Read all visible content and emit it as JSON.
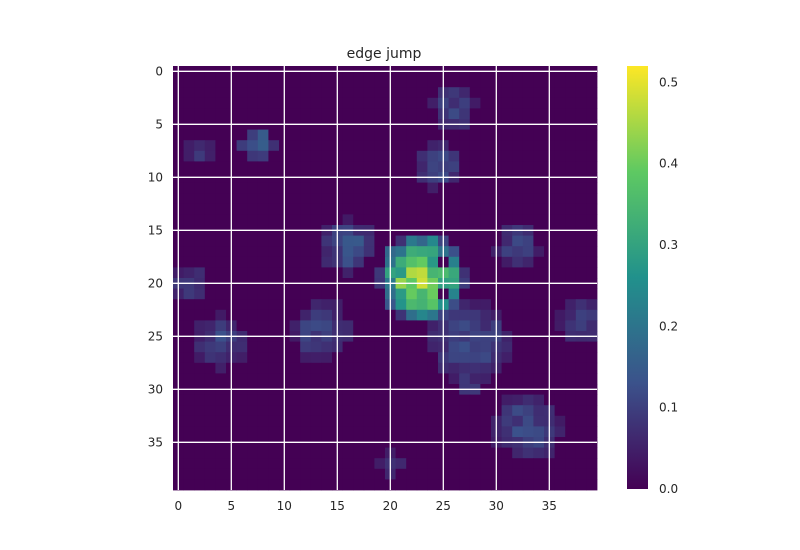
{
  "chart_data": {
    "type": "heatmap",
    "title": "edge jump",
    "xlabel": "",
    "ylabel": "",
    "grid": true,
    "colormap": "viridis",
    "rows": 40,
    "cols": 40,
    "x_ticks": [
      0,
      5,
      10,
      15,
      20,
      25,
      30,
      35
    ],
    "y_ticks": [
      0,
      5,
      10,
      15,
      20,
      25,
      30,
      35
    ],
    "colorbar": {
      "min": 0.0,
      "max": 0.52,
      "ticks": [
        "0.0",
        "0.1",
        "0.2",
        "0.3",
        "0.4",
        "0.5"
      ]
    },
    "blobs": [
      {
        "cx": 23,
        "cy": 19.5,
        "r": 4.2,
        "peak": 0.52
      },
      {
        "cx": 27.5,
        "cy": 25.5,
        "r": 4.2,
        "peak": 0.14
      },
      {
        "cx": 33,
        "cy": 33.5,
        "r": 3.6,
        "peak": 0.14
      },
      {
        "cx": 13.5,
        "cy": 24.5,
        "r": 3.2,
        "peak": 0.13
      },
      {
        "cx": 16,
        "cy": 16.5,
        "r": 2.8,
        "peak": 0.16
      },
      {
        "cx": 4,
        "cy": 25.5,
        "r": 2.8,
        "peak": 0.13
      },
      {
        "cx": 24.5,
        "cy": 9,
        "r": 2.4,
        "peak": 0.14
      },
      {
        "cx": 26,
        "cy": 3.5,
        "r": 2.4,
        "peak": 0.12
      },
      {
        "cx": 32,
        "cy": 16.5,
        "r": 2.4,
        "peak": 0.12
      },
      {
        "cx": 38,
        "cy": 23.5,
        "r": 2.4,
        "peak": 0.12
      },
      {
        "cx": 7.5,
        "cy": 7,
        "r": 1.8,
        "peak": 0.2
      },
      {
        "cx": 1,
        "cy": 20,
        "r": 1.8,
        "peak": 0.12
      },
      {
        "cx": 2,
        "cy": 7.5,
        "r": 1.5,
        "peak": 0.1
      },
      {
        "cx": 20,
        "cy": 37,
        "r": 1.4,
        "peak": 0.1
      },
      {
        "cx": 27.5,
        "cy": 29.5,
        "r": 1.8,
        "peak": 0.1
      }
    ],
    "holes": [
      [
        25,
        18
      ],
      [
        25,
        21
      ],
      [
        29,
        30
      ],
      [
        30,
        31
      ]
    ]
  }
}
